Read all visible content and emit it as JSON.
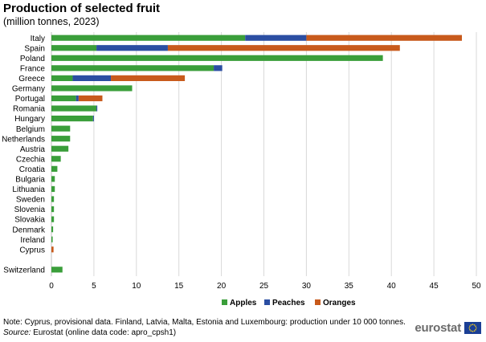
{
  "header": {
    "title": "Production of selected fruit",
    "subtitle": "(million tonnes, 2023)"
  },
  "footer": {
    "note": "Note: Cyprus, provisional data. Finland, Latvia, Malta, Estonia and Luxembourg: production under 10 000 tonnes.",
    "source_label": "Source:",
    "source_text": " Eurostat (online data code: apro_cpsh1)",
    "logo_text": "eurostat"
  },
  "chart_data": {
    "type": "bar",
    "orientation": "horizontal",
    "stacked": true,
    "categories": [
      "Italy",
      "Spain",
      "Poland",
      "France",
      "Greece",
      "Germany",
      "Portugal",
      "Romania",
      "Hungary",
      "Belgium",
      "Netherlands",
      "Austria",
      "Czechia",
      "Croatia",
      "Bulgaria",
      "Lithuania",
      "Sweden",
      "Slovenia",
      "Slovakia",
      "Denmark",
      "Ireland",
      "Cyprus",
      "Switzerland"
    ],
    "series": [
      {
        "name": "Apples",
        "color": "#3a9e3a",
        "values": [
          22.8,
          5.3,
          39.0,
          19.1,
          2.5,
          9.5,
          2.9,
          5.3,
          4.9,
          2.2,
          2.2,
          2.0,
          1.1,
          0.7,
          0.4,
          0.4,
          0.3,
          0.3,
          0.3,
          0.2,
          0.15,
          0.0,
          1.3
        ]
      },
      {
        "name": "Peaches",
        "color": "#2b4ea2",
        "values": [
          7.2,
          8.4,
          0.0,
          1.0,
          4.5,
          0.0,
          0.3,
          0.1,
          0.1,
          0.0,
          0.0,
          0.0,
          0.0,
          0.0,
          0.0,
          0.0,
          0.0,
          0.0,
          0.0,
          0.0,
          0.0,
          0.0,
          0.0
        ]
      },
      {
        "name": "Oranges",
        "color": "#c85a1c",
        "values": [
          18.3,
          27.3,
          0.0,
          0.0,
          8.7,
          0.0,
          2.8,
          0.0,
          0.0,
          0.0,
          0.0,
          0.0,
          0.0,
          0.0,
          0.0,
          0.0,
          0.0,
          0.0,
          0.0,
          0.0,
          0.0,
          0.25,
          0.0
        ]
      }
    ],
    "x_ticks": [
      "0",
      "5",
      "10",
      "15",
      "20",
      "25",
      "30",
      "35",
      "40",
      "45",
      "50"
    ],
    "xlim": [
      0,
      50
    ],
    "grid": "vertical",
    "legend_position": "bottom"
  }
}
